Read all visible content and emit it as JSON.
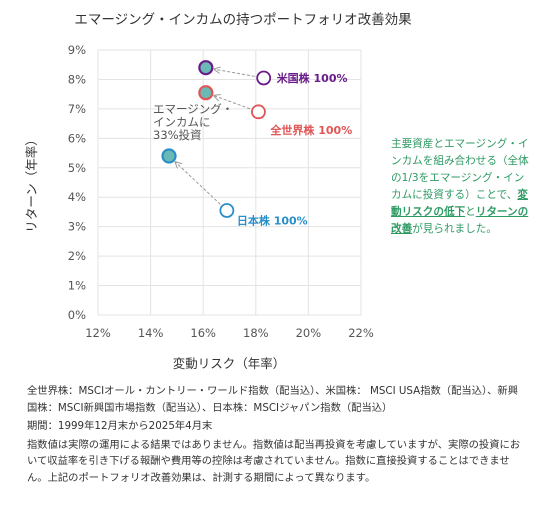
{
  "chart_data": {
    "type": "scatter",
    "title": "エマージング・インカムの持つポートフォリオ改善効果",
    "xlabel": "変動リスク（年率）",
    "ylabel": "リターン（年率）",
    "xlim": [
      12,
      22
    ],
    "ylim": [
      0,
      9
    ],
    "x_ticks": [
      12,
      14,
      16,
      18,
      20,
      22
    ],
    "y_ticks": [
      0,
      1,
      2,
      3,
      4,
      5,
      6,
      7,
      8,
      9
    ],
    "x_tick_labels": [
      "12%",
      "14%",
      "16%",
      "18%",
      "20%",
      "22%"
    ],
    "y_tick_labels": [
      "0%",
      "1%",
      "2%",
      "3%",
      "4%",
      "5%",
      "6%",
      "7%",
      "8%",
      "9%"
    ],
    "grid": true,
    "points": [
      {
        "label": "米国株 100%",
        "x": 18.3,
        "y": 8.05,
        "color": "#6a1b8a",
        "fill": "#ffffff"
      },
      {
        "label": "全世界株 100%",
        "x": 18.1,
        "y": 6.9,
        "color": "#e05555",
        "fill": "#ffffff"
      },
      {
        "label": "日本株 100%",
        "x": 16.9,
        "y": 3.55,
        "color": "#2a8fc9",
        "fill": "#ffffff"
      },
      {
        "label": "",
        "x": 16.1,
        "y": 8.4,
        "color": "#6a1b8a",
        "fill": "#6bb9b4"
      },
      {
        "label": "",
        "x": 16.1,
        "y": 7.55,
        "color": "#e05555",
        "fill": "#6bb9b4"
      },
      {
        "label": "",
        "x": 14.7,
        "y": 5.4,
        "color": "#2a8fc9",
        "fill": "#6bb9b4"
      }
    ],
    "annotation": {
      "lines": [
        "エマージング・",
        "インカムに",
        "33%投資"
      ],
      "color": "#888888"
    }
  },
  "note": {
    "text1": "主要資産とエマージング・インカムを組み合わせる（全体の1/3をエマージング・インカムに投資する）ことで、",
    "bold1": "変動リスクの低下",
    "text2": "と",
    "bold2": "リターンの改善",
    "text3": "が見られました。"
  },
  "footnotes": {
    "sources": "全世界株：MSCIオール・カントリー・ワールド指数（配当込）、米国株： MSCI USA指数（配当込）、新興国株：MSCI新興国市場指数（配当込）、日本株：MSCIジャパン指数（配当込）",
    "period": "期間：1999年12月末から2025年4月末",
    "disclaimer": "指数値は実際の運用による結果ではありません。指数値は配当再投資を考慮していますが、実際の投資において収益率を引き下げる報酬や費用等の控除は考慮されていません。指数に直接投資することはできません。上記のポートフォリオ改善効果は、計測する期間によって異なります。"
  },
  "colors": {
    "accent": "#2e9a63",
    "teal_fill": "#6bb9b4"
  }
}
